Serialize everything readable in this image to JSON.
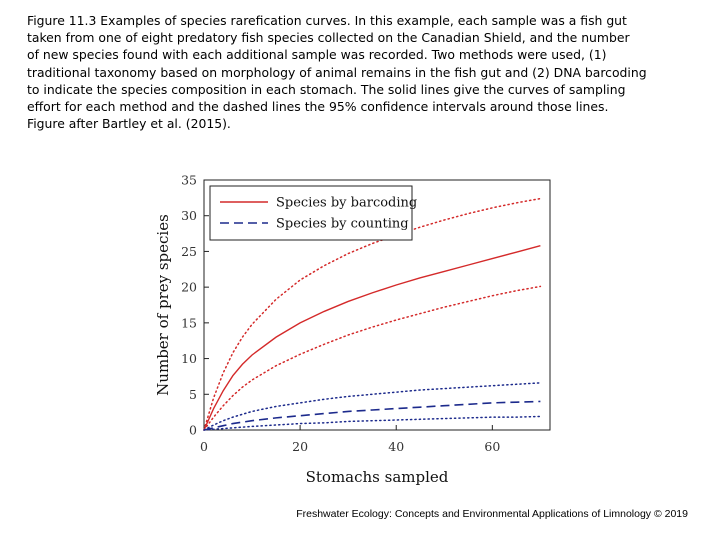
{
  "caption": {
    "lines": [
      "Figure 11.3 Examples of species rarefication curves. In this example, each sample was a fish gut",
      "taken from one of eight predatory fish species collected on the Canadian Shield, and the number",
      "of new species found with each additional sample was recorded. Two methods were used, (1)",
      "traditional taxonomy based on morphology of animal remains in the fish gut and (2) DNA barcoding",
      "to indicate the species composition in each stomach. The solid lines give the curves of sampling",
      "effort for each method and the dashed lines the 95% confidence intervals around those lines.",
      "Figure after Bartley et al. (2015)."
    ]
  },
  "footer": {
    "text": "Freshwater Ecology: Concepts and Environmental Applications of Limnology © 2019"
  },
  "colors": {
    "barcoding": "#d42a2a",
    "counting": "#1c2a8c",
    "axis": "#222222"
  },
  "chart_data": {
    "type": "line",
    "title": "",
    "xlabel": "Stomachs sampled",
    "ylabel": "Number of prey species",
    "xlim": [
      0,
      72
    ],
    "ylim": [
      0,
      35
    ],
    "xticks": [
      0,
      20,
      40,
      60
    ],
    "yticks": [
      0,
      5,
      10,
      15,
      20,
      25,
      30,
      35
    ],
    "grid": false,
    "legend_position": "top-left",
    "x": [
      0,
      2,
      4,
      6,
      8,
      10,
      15,
      20,
      25,
      30,
      35,
      40,
      45,
      50,
      55,
      60,
      65,
      70
    ],
    "series": [
      {
        "name": "Species by barcoding",
        "style": "solid",
        "legend": true,
        "values": [
          0,
          3.0,
          5.5,
          7.6,
          9.2,
          10.5,
          13.0,
          15.0,
          16.6,
          18.0,
          19.2,
          20.3,
          21.3,
          22.2,
          23.1,
          24.0,
          24.9,
          25.8
        ]
      },
      {
        "name": "Species by counting",
        "style": "dashed",
        "legend": true,
        "values": [
          0,
          0.3,
          0.6,
          0.9,
          1.1,
          1.3,
          1.7,
          2.0,
          2.3,
          2.6,
          2.8,
          3.0,
          3.2,
          3.4,
          3.6,
          3.8,
          3.9,
          4.0
        ]
      },
      {
        "style": "dotted",
        "color_of": "barcoding",
        "legend": false,
        "values": [
          0,
          4.5,
          8.0,
          10.8,
          13.0,
          14.8,
          18.3,
          21.0,
          23.0,
          24.7,
          26.1,
          27.3,
          28.4,
          29.4,
          30.3,
          31.1,
          31.8,
          32.4
        ]
      },
      {
        "style": "dotted",
        "color_of": "barcoding",
        "legend": false,
        "values": [
          0,
          1.8,
          3.4,
          4.8,
          6.0,
          7.0,
          9.0,
          10.6,
          12.0,
          13.3,
          14.4,
          15.4,
          16.3,
          17.2,
          18.0,
          18.8,
          19.5,
          20.1
        ]
      },
      {
        "style": "dotted",
        "color_of": "counting",
        "legend": false,
        "values": [
          0,
          0.7,
          1.3,
          1.8,
          2.2,
          2.6,
          3.3,
          3.8,
          4.3,
          4.7,
          5.0,
          5.3,
          5.6,
          5.8,
          6.0,
          6.2,
          6.4,
          6.6
        ]
      },
      {
        "style": "dotted",
        "color_of": "counting",
        "legend": false,
        "values": [
          0,
          0.1,
          0.2,
          0.3,
          0.4,
          0.5,
          0.7,
          0.9,
          1.0,
          1.2,
          1.3,
          1.4,
          1.5,
          1.6,
          1.7,
          1.8,
          1.8,
          1.9
        ]
      }
    ]
  }
}
